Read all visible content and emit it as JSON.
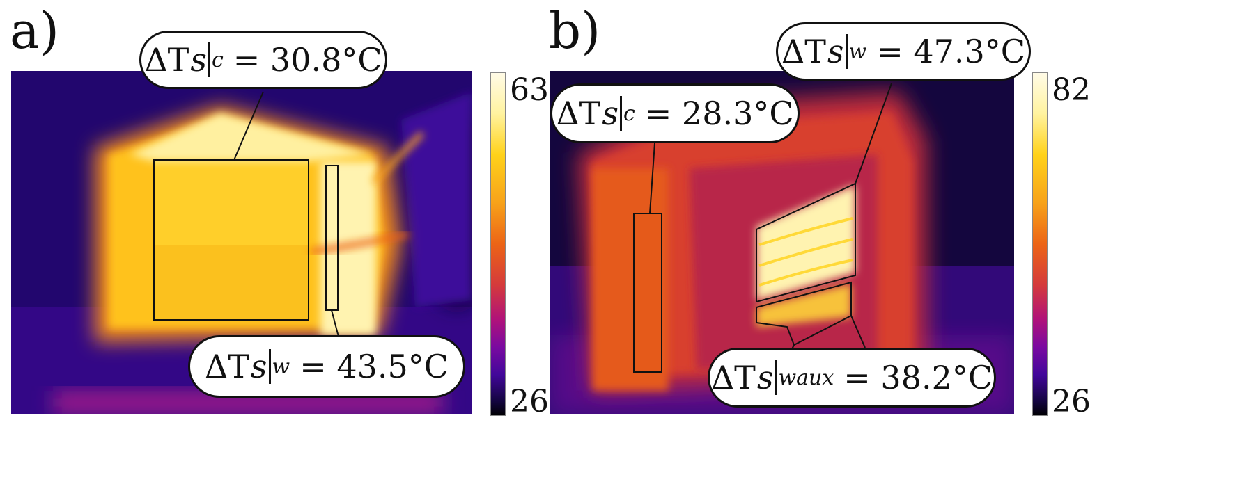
{
  "panels": {
    "a": {
      "label": "a)",
      "scale": {
        "max": "63",
        "min": "26"
      },
      "callout_c": {
        "sym": "ΔT",
        "sub1": "s",
        "sub2": "c",
        "value": "= 30.8°C"
      },
      "callout_w": {
        "sym": "ΔT",
        "sub1": "s",
        "sub2": "w",
        "value": "= 43.5°C"
      }
    },
    "b": {
      "label": "b)",
      "scale": {
        "max": "82",
        "min": "26"
      },
      "callout_c": {
        "sym": "ΔT",
        "sub1": "s",
        "sub2": "c",
        "value": "= 28.3°C"
      },
      "callout_w": {
        "sym": "ΔT",
        "sub1": "s",
        "sub2": "w",
        "value": "= 47.3°C"
      },
      "callout_waux": {
        "sym": "ΔT",
        "sub1": "s",
        "sub2": "waux",
        "value": "= 38.2°C"
      }
    }
  },
  "colors": {
    "colormap": [
      "#fffbe8",
      "#fff3a0",
      "#ffd21a",
      "#f7a21a",
      "#ec6416",
      "#d43a3c",
      "#b0127a",
      "#7a0aa0",
      "#42079a",
      "#12053c",
      "#000000"
    ],
    "outline": "#111111"
  }
}
